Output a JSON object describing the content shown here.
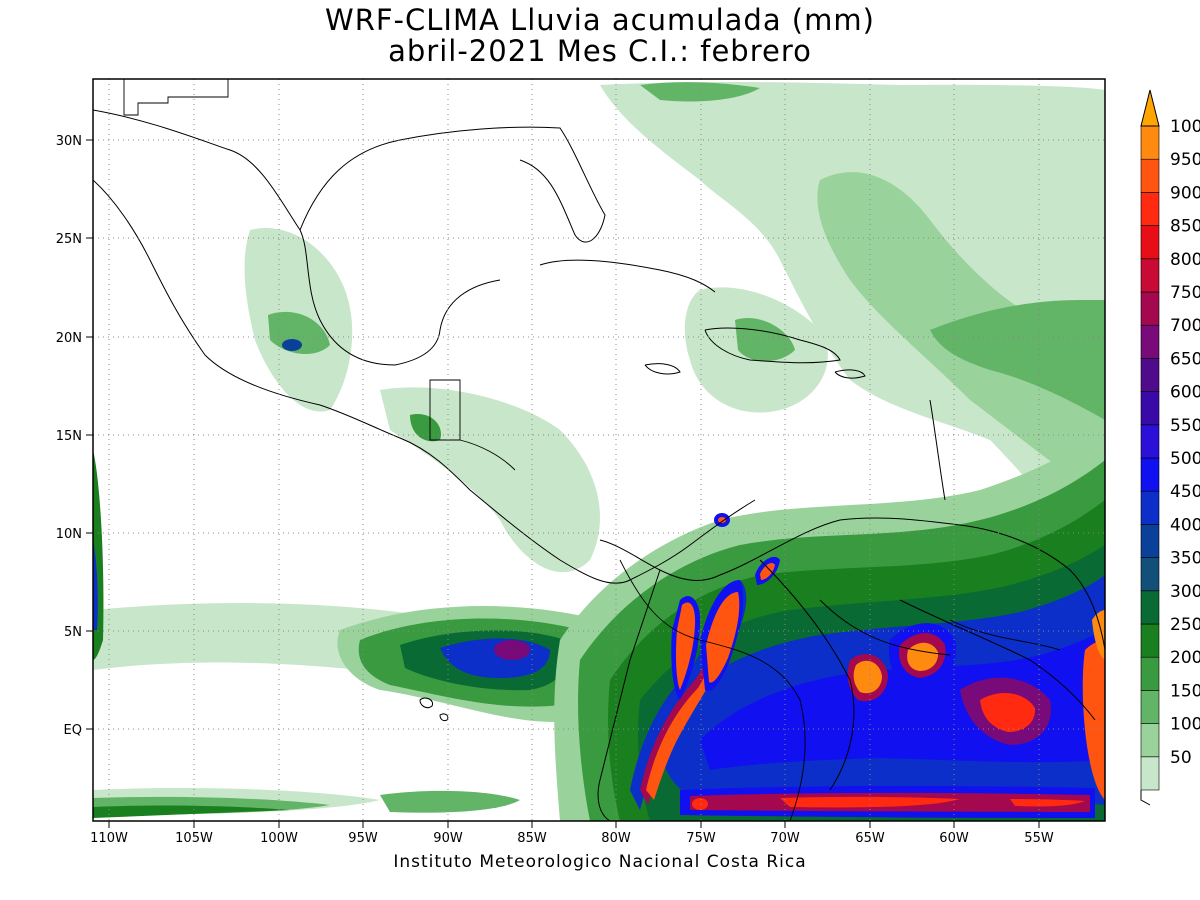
{
  "title": {
    "line1": "WRF-CLIMA Lluvia acumulada (mm)",
    "line2": "abril-2021 Mes C.I.: febrero"
  },
  "footer": "Instituto Meteorologico Nacional Costa Rica",
  "map": {
    "lon_range": [
      -111,
      -51
    ],
    "lat_range": [
      -5,
      33
    ],
    "x_ticks": [
      "110W",
      "105W",
      "100W",
      "95W",
      "90W",
      "85W",
      "80W",
      "75W",
      "70W",
      "65W",
      "60W",
      "55W"
    ],
    "y_ticks": [
      "30N",
      "25N",
      "20N",
      "15N",
      "10N",
      "5N",
      "EQ"
    ],
    "gridlines": true
  },
  "colorbar": {
    "labels": [
      "1000",
      "950",
      "900",
      "850",
      "800",
      "750",
      "700",
      "650",
      "600",
      "550",
      "500",
      "450",
      "400",
      "350",
      "300",
      "250",
      "200",
      "150",
      "100",
      "50"
    ],
    "colors": [
      "#c8e6c9",
      "#9ad29c",
      "#62b566",
      "#3a9a3f",
      "#1a7f1e",
      "#0a6a34",
      "#12507a",
      "#0a3f9a",
      "#0b2fc8",
      "#1010f0",
      "#2a10d8",
      "#3a0aa8",
      "#500a8c",
      "#780a7a",
      "#a4084e",
      "#c80a34",
      "#e80e18",
      "#ff2a10",
      "#ff5510",
      "#ff8a10"
    ],
    "top_color": "#ffa500"
  }
}
